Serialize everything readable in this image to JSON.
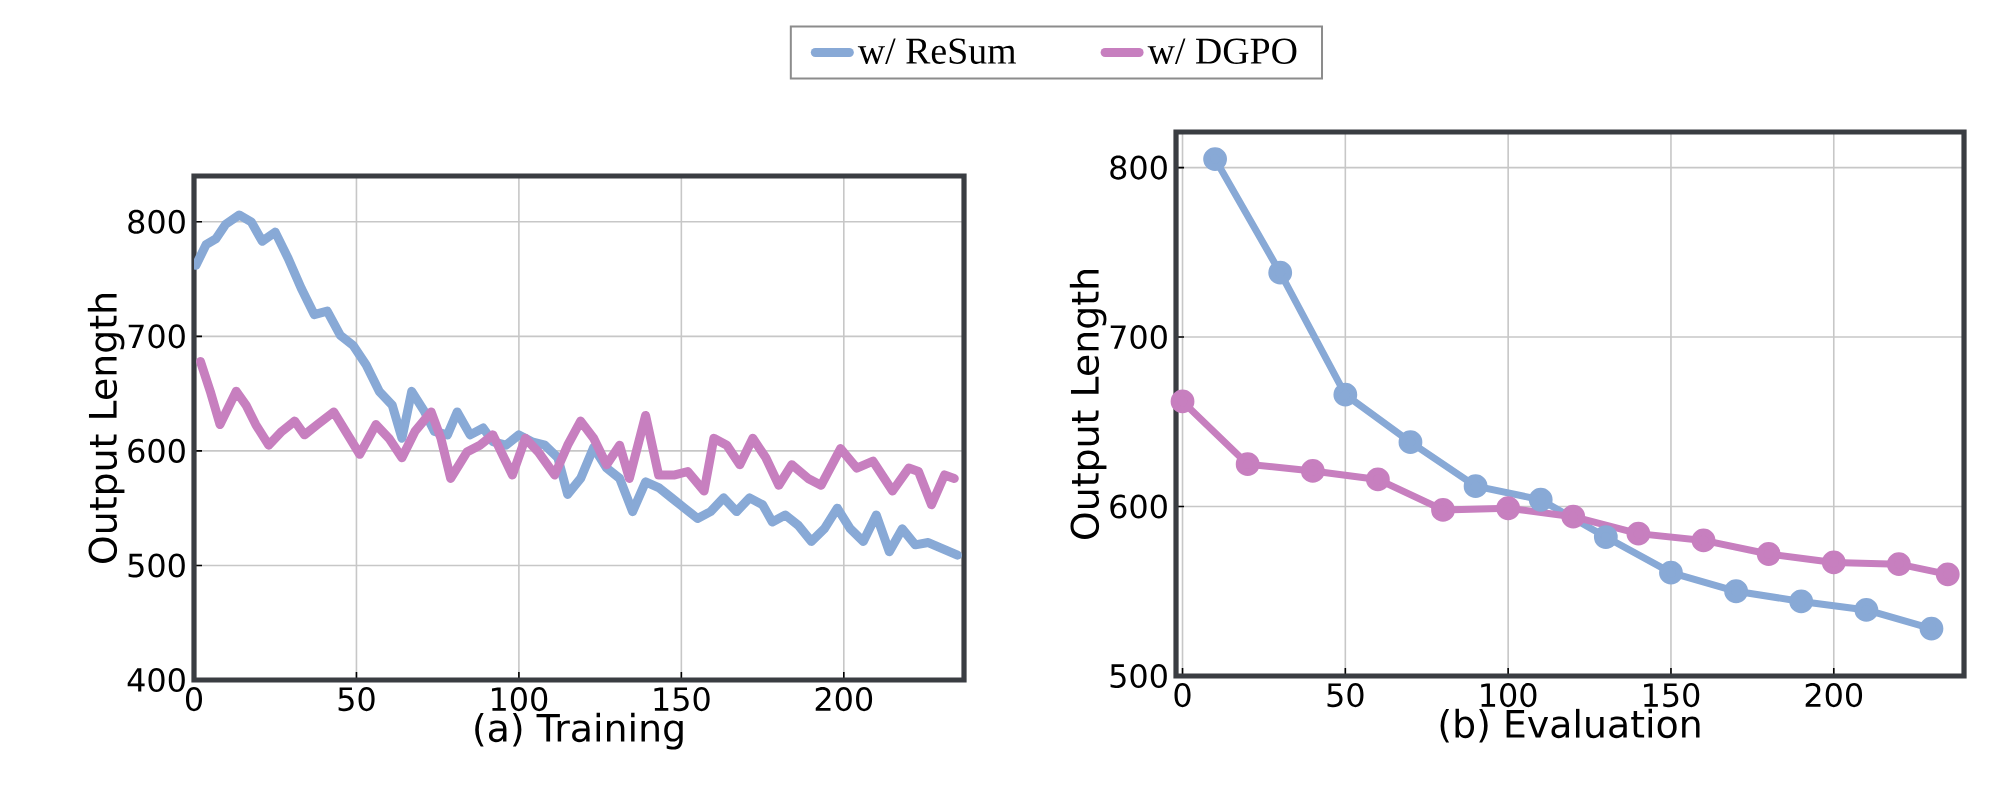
{
  "chart_data": [
    {
      "type": "line",
      "xlabel": "(a) Training",
      "ylabel": "Output Length",
      "xlim": [
        0,
        237
      ],
      "ylim": [
        400,
        840
      ],
      "xticks": [
        0,
        50,
        100,
        150,
        200
      ],
      "yticks": [
        400,
        500,
        600,
        700,
        800
      ],
      "grid": true,
      "legend": "top",
      "marker": "none",
      "series": [
        {
          "name": "w/ ReSum",
          "color": "#88a9d6",
          "x": [
            0.6,
            3.7,
            6.7,
            9.8,
            13.9,
            17.6,
            21,
            25,
            29,
            33,
            37,
            41,
            45,
            49,
            53,
            57,
            61,
            64,
            67,
            71,
            74,
            78,
            81,
            85,
            89,
            92,
            96,
            100,
            104,
            108,
            112,
            115,
            119,
            123,
            127,
            131,
            135,
            139,
            143,
            147,
            151,
            155,
            159,
            163,
            167,
            171,
            175,
            178,
            182,
            186,
            190,
            194,
            198,
            202,
            206,
            210,
            214,
            218,
            222,
            226,
            235
          ],
          "values": [
            762,
            780,
            785,
            798,
            806,
            800,
            783,
            791,
            768,
            742,
            719,
            722,
            701,
            692,
            675,
            652,
            640,
            611,
            652,
            634,
            617,
            614,
            634,
            614,
            620,
            608,
            605,
            614,
            608,
            605,
            594,
            562,
            576,
            603,
            585,
            576,
            547,
            573,
            568,
            559,
            550,
            541,
            547,
            559,
            547,
            559,
            553,
            538,
            544,
            535,
            521,
            532,
            550,
            532,
            521,
            544,
            512,
            532,
            518,
            520,
            509
          ]
        },
        {
          "name": "w/ DGPO",
          "color": "#c77fbf",
          "x": [
            2,
            5,
            8,
            13,
            16,
            19,
            23,
            27,
            31,
            34,
            38,
            43,
            48,
            51,
            56,
            60,
            64,
            68,
            73,
            76,
            79,
            84,
            88,
            92,
            98,
            102,
            106,
            111,
            115,
            119,
            123,
            127,
            131,
            134,
            139,
            143,
            148,
            152,
            157,
            160,
            164,
            168,
            172,
            176,
            180,
            184,
            189,
            193,
            199,
            204,
            209,
            215,
            220,
            223,
            227,
            231,
            234
          ],
          "values": [
            678,
            652,
            623,
            652,
            640,
            623,
            605,
            617,
            626,
            614,
            623,
            634,
            611,
            597,
            623,
            611,
            594,
            617,
            634,
            611,
            576,
            599,
            605,
            614,
            579,
            611,
            599,
            579,
            605,
            626,
            611,
            588,
            605,
            576,
            631,
            579,
            579,
            582,
            565,
            611,
            605,
            588,
            611,
            594,
            570,
            588,
            576,
            570,
            602,
            585,
            591,
            565,
            585,
            582,
            553,
            579,
            576
          ]
        }
      ]
    },
    {
      "type": "line",
      "xlabel": "(b) Evaluation",
      "ylabel": "Output Length",
      "xlim": [
        -2,
        240
      ],
      "ylim": [
        500,
        821
      ],
      "xticks": [
        0,
        50,
        100,
        150,
        200
      ],
      "yticks": [
        500,
        600,
        700,
        800
      ],
      "grid": true,
      "marker": "circle",
      "series": [
        {
          "color": "#88a9d6",
          "x": [
            10,
            30,
            50,
            70,
            90,
            110,
            130,
            150,
            170,
            190,
            210,
            230
          ],
          "values": [
            805,
            738,
            666,
            638,
            612,
            604,
            582,
            561,
            550,
            544,
            539,
            528
          ]
        },
        {
          "color": "#c77fbf",
          "x": [
            0,
            20,
            40,
            60,
            80,
            100,
            120,
            140,
            160,
            180,
            200,
            220,
            235
          ],
          "values": [
            662,
            625,
            621,
            616,
            598,
            599,
            594,
            584,
            580,
            572,
            567,
            566,
            560
          ]
        }
      ]
    }
  ]
}
